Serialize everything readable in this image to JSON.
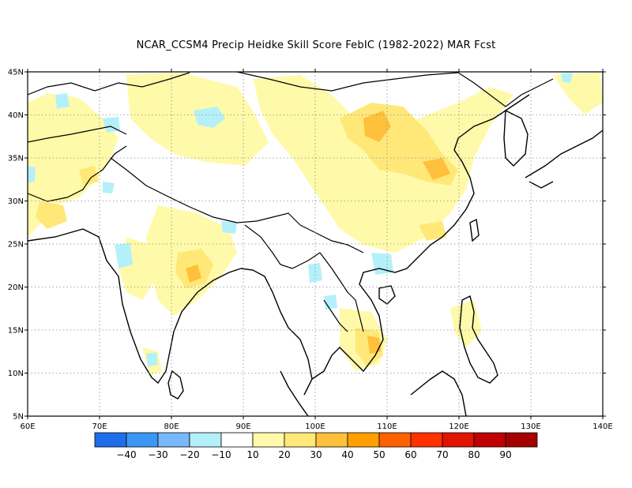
{
  "title": "NCAR_CCSM4 Precip Heidke Skill Score FebIC (1982-2022) MAR Fcst",
  "map": {
    "lon_range": [
      60,
      140
    ],
    "lat_range": [
      5,
      45
    ],
    "lon_ticks": [
      "60E",
      "70E",
      "80E",
      "90E",
      "100E",
      "110E",
      "120E",
      "130E",
      "140E"
    ],
    "lat_ticks": [
      "5N",
      "10N",
      "15N",
      "20N",
      "25N",
      "30N",
      "35N",
      "40N",
      "45N"
    ],
    "grid": true,
    "coastline_color": "#000000"
  },
  "colorbar": {
    "colors": [
      "#1e6eeb",
      "#3c96f5",
      "#78b9fa",
      "#b4f0fa",
      "#ffffff",
      "#fffaaa",
      "#ffe878",
      "#ffc03c",
      "#ffa000",
      "#ff6000",
      "#ff3200",
      "#e11400",
      "#c00000",
      "#a50000"
    ],
    "labels": [
      "-40",
      "-30",
      "-20",
      "-10",
      "10",
      "20",
      "30",
      "40",
      "50",
      "60",
      "70",
      "80",
      "90"
    ]
  },
  "shading": [
    {
      "name": "tibet-north-yellow",
      "color": "#fffaaa",
      "points": [
        [
          -30,
          -40
        ],
        [
          -10,
          -70
        ],
        [
          10,
          -60
        ],
        [
          40,
          -40
        ]
      ]
    }
  ]
}
